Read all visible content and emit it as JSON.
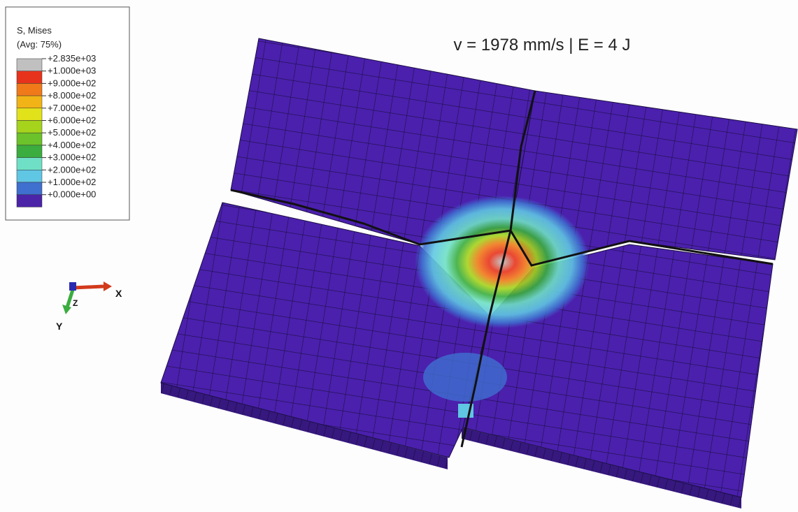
{
  "legend": {
    "title": "S, Mises",
    "subtitle": "(Avg: 75%)",
    "labels": [
      "+2.835e+03",
      "+1.000e+03",
      "+9.000e+02",
      "+8.000e+02",
      "+7.000e+02",
      "+6.000e+02",
      "+5.000e+02",
      "+4.000e+02",
      "+3.000e+02",
      "+2.000e+02",
      "+1.000e+02",
      "+0.000e+00"
    ],
    "colors": [
      "#c0c0c0",
      "#e8331c",
      "#f07a1a",
      "#f2b316",
      "#e2e21a",
      "#a6d31c",
      "#6cc22a",
      "#3aad3e",
      "#6fe0c5",
      "#5fc6e3",
      "#3f6fcf",
      "#4b24a8"
    ]
  },
  "title": "v = 1978 mm/s | E = 4 J",
  "triad": {
    "x": "X",
    "y": "Y",
    "z": "Z"
  }
}
